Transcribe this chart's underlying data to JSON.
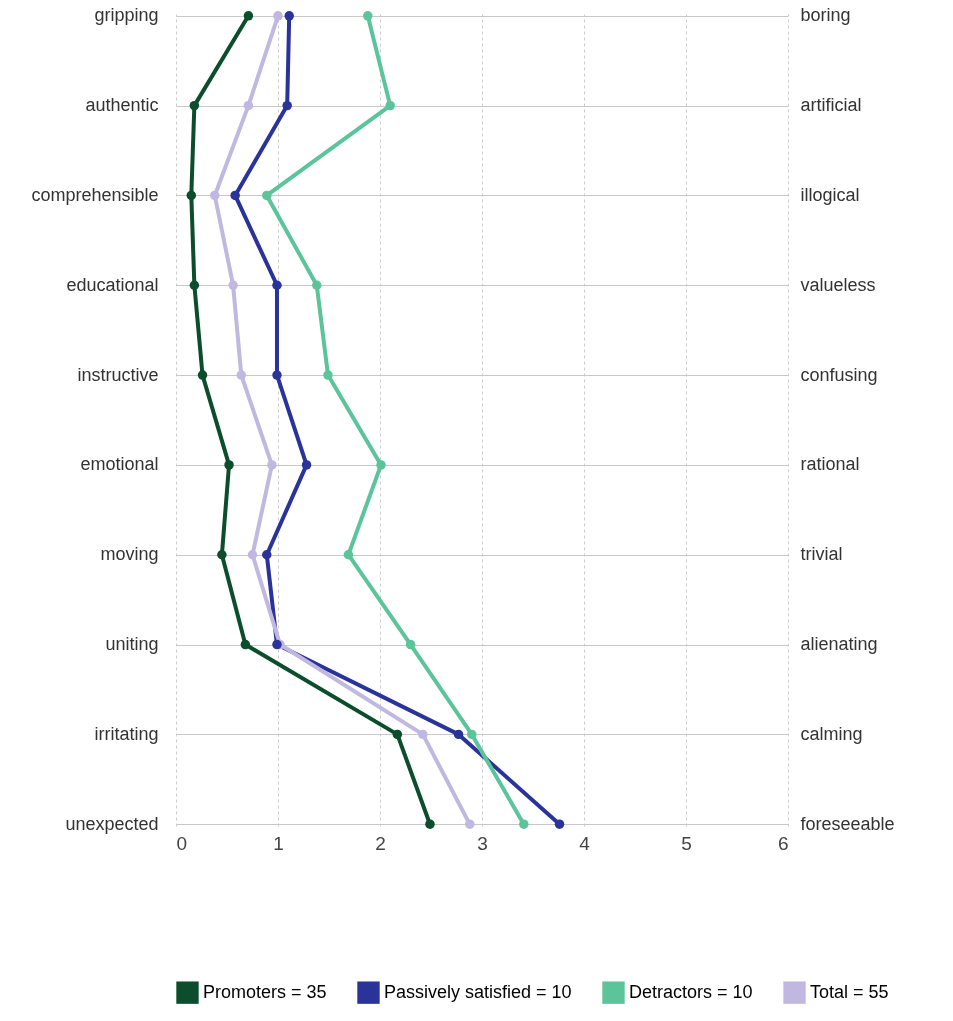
{
  "chart_data": {
    "type": "line",
    "orientation": "horizontal",
    "categories": [
      "gripping",
      "authentic",
      "comprehensible",
      "educational",
      "instructive",
      "emotional",
      "moving",
      "uniting",
      "irritating",
      "unexpected"
    ],
    "y2_categories": [
      "boring",
      "artificial",
      "illogical",
      "valueless",
      "confusing",
      "rational",
      "trivial",
      "alienating",
      "calming",
      "foreseeable"
    ],
    "series": [
      {
        "name": "Promoters = 35",
        "color": "#0b4d2c",
        "values": [
          0.71,
          0.18,
          0.15,
          0.18,
          0.26,
          0.52,
          0.45,
          0.68,
          2.17,
          2.49
        ]
      },
      {
        "name": "Passively satisfied = 10",
        "color": "#2a3399",
        "values": [
          1.11,
          1.09,
          0.58,
          0.99,
          0.99,
          1.28,
          0.89,
          0.99,
          2.77,
          3.76
        ]
      },
      {
        "name": "Detractors = 10",
        "color": "#5cc49a",
        "values": [
          1.88,
          2.1,
          0.89,
          1.38,
          1.49,
          2.01,
          1.69,
          2.3,
          2.9,
          3.41
        ]
      },
      {
        "name": "Total = 55",
        "color": "#c0b8e0",
        "values": [
          1.0,
          0.71,
          0.38,
          0.56,
          0.64,
          0.94,
          0.75,
          1.02,
          2.42,
          2.88
        ]
      }
    ],
    "xlim": [
      0,
      6
    ],
    "xticks": [
      0,
      1,
      2,
      3,
      4,
      5,
      6
    ],
    "grid": true,
    "legend": "bottom",
    "marker": "circle",
    "line_style": "solid"
  }
}
